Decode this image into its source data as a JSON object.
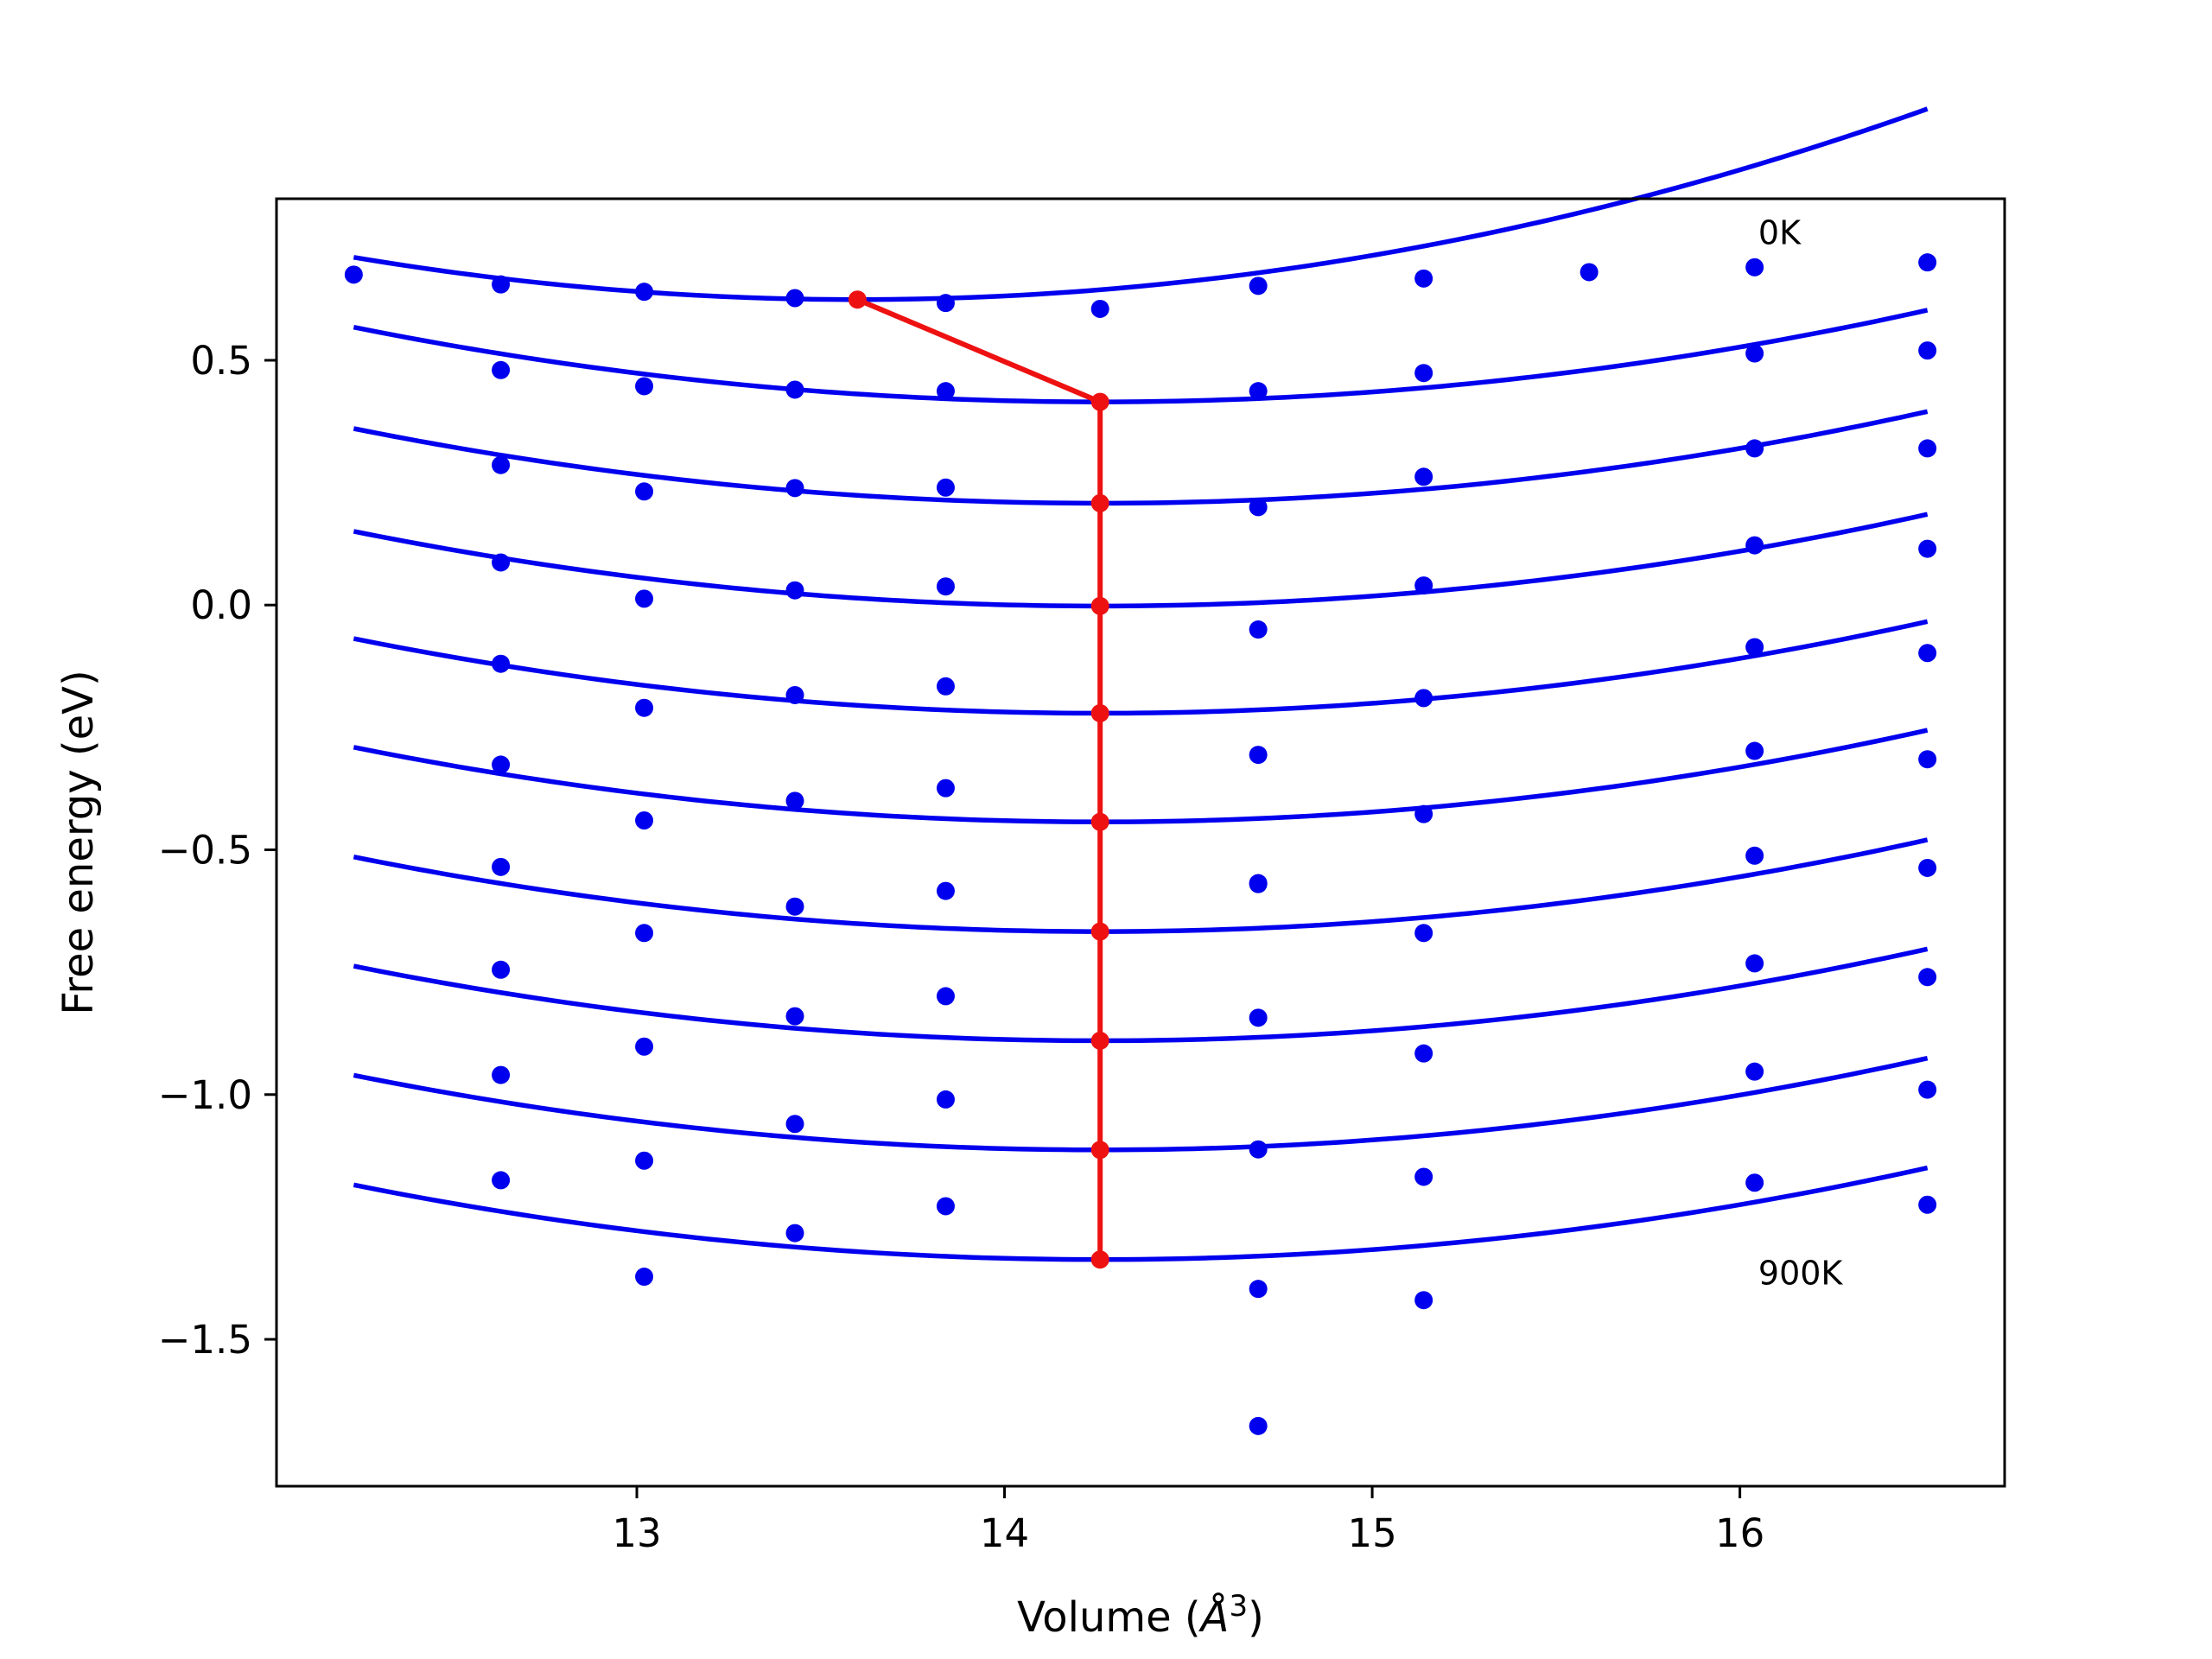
{
  "chart_data": {
    "type": "scatter",
    "xlabel_text": "Volume (",
    "xlabel_unit": "Å",
    "xlabel_sup": "3",
    "xlabel_close": ")",
    "ylabel": "Free energy (eV)",
    "xlim": [
      12.02,
      16.72
    ],
    "ylim": [
      -1.8,
      0.83
    ],
    "xticks": [
      13,
      14,
      15,
      16
    ],
    "xtick_labels": [
      "13",
      "14",
      "15",
      "16"
    ],
    "yticks": [
      0.5,
      0.0,
      -0.5,
      -1.0,
      -1.5
    ],
    "ytick_labels": [
      "0.5",
      "0.0",
      "−0.5",
      "−1.0",
      "−1.5"
    ],
    "grid": false,
    "annotations": [
      {
        "text": "0K",
        "x": 16.05,
        "y": 0.76
      },
      {
        "text": "900K",
        "x": 16.05,
        "y": -1.365
      }
    ],
    "volumes": [
      12.23,
      12.63,
      13.02,
      13.43,
      13.84,
      14.26,
      14.69,
      15.14,
      15.59,
      16.04,
      16.51
    ],
    "series": [
      {
        "label": "0K",
        "points": [
          [
            12.23,
            0.675
          ],
          [
            12.63,
            0.655
          ],
          [
            13.02,
            0.64
          ],
          [
            13.43,
            0.627
          ],
          [
            13.84,
            0.617
          ],
          [
            14.26,
            0.605
          ],
          [
            14.69,
            0.652
          ],
          [
            15.14,
            0.667
          ],
          [
            15.59,
            0.68
          ],
          [
            16.04,
            0.69
          ],
          [
            16.51,
            0.7
          ]
        ],
        "fit": {
          "a": 0.046,
          "vmin": 13.6,
          "emin": 0.624
        }
      },
      {
        "points": [
          [
            12.63,
            0.48
          ],
          [
            13.02,
            0.447
          ],
          [
            13.43,
            0.44
          ],
          [
            13.84,
            0.437
          ],
          [
            14.69,
            0.437
          ],
          [
            15.14,
            0.474
          ],
          [
            16.04,
            0.514
          ],
          [
            16.51,
            0.52
          ]
        ],
        "fit": {
          "a": 0.037,
          "vmin": 14.26,
          "emin": 0.415
        }
      },
      {
        "points": [
          [
            12.63,
            0.286
          ],
          [
            13.02,
            0.232
          ],
          [
            13.43,
            0.239
          ],
          [
            13.84,
            0.24
          ],
          [
            14.69,
            0.2
          ],
          [
            15.14,
            0.262
          ],
          [
            16.04,
            0.32
          ],
          [
            16.51,
            0.32
          ]
        ],
        "fit": {
          "a": 0.037,
          "vmin": 14.26,
          "emin": 0.208
        }
      },
      {
        "points": [
          [
            12.63,
            0.087
          ],
          [
            13.02,
            0.013
          ],
          [
            13.43,
            0.03
          ],
          [
            13.84,
            0.038
          ],
          [
            14.69,
            -0.05
          ],
          [
            15.14,
            0.04
          ],
          [
            16.04,
            0.122
          ],
          [
            16.51,
            0.115
          ]
        ],
        "fit": {
          "a": 0.037,
          "vmin": 14.26,
          "emin": -0.002
        }
      },
      {
        "points": [
          [
            12.63,
            -0.12
          ],
          [
            13.02,
            -0.21
          ],
          [
            13.43,
            -0.184
          ],
          [
            13.84,
            -0.166
          ],
          [
            14.69,
            -0.306
          ],
          [
            15.14,
            -0.19
          ],
          [
            16.04,
            -0.086
          ],
          [
            16.51,
            -0.098
          ]
        ],
        "fit": {
          "a": 0.037,
          "vmin": 14.26,
          "emin": -0.221
        }
      },
      {
        "points": [
          [
            12.63,
            -0.326
          ],
          [
            13.02,
            -0.44
          ],
          [
            13.43,
            -0.4
          ],
          [
            13.84,
            -0.374
          ],
          [
            14.69,
            -0.568
          ],
          [
            15.14,
            -0.427
          ],
          [
            16.04,
            -0.298
          ],
          [
            16.51,
            -0.315
          ]
        ],
        "fit": {
          "a": 0.037,
          "vmin": 14.26,
          "emin": -0.443
        }
      },
      {
        "points": [
          [
            12.63,
            -0.535
          ],
          [
            13.02,
            -0.67
          ],
          [
            13.43,
            -0.616
          ],
          [
            13.84,
            -0.584
          ],
          [
            14.69,
            -0.57
          ],
          [
            15.14,
            -0.67
          ],
          [
            16.04,
            -0.512
          ],
          [
            16.51,
            -0.537
          ]
        ],
        "fit": {
          "a": 0.037,
          "vmin": 14.26,
          "emin": -0.667
        }
      },
      {
        "points": [
          [
            12.63,
            -0.745
          ],
          [
            13.02,
            -0.902
          ],
          [
            13.43,
            -0.84
          ],
          [
            13.84,
            -0.799
          ],
          [
            14.69,
            -0.843
          ],
          [
            15.14,
            -0.916
          ],
          [
            16.04,
            -0.732
          ],
          [
            16.51,
            -0.76
          ]
        ],
        "fit": {
          "a": 0.037,
          "vmin": 14.26,
          "emin": -0.89
        }
      },
      {
        "points": [
          [
            12.63,
            -0.96
          ],
          [
            13.02,
            -1.135
          ],
          [
            13.43,
            -1.06
          ],
          [
            13.84,
            -1.01
          ],
          [
            14.69,
            -1.112
          ],
          [
            15.14,
            -1.168
          ],
          [
            16.04,
            -0.953
          ],
          [
            16.51,
            -0.99
          ]
        ],
        "fit": {
          "a": 0.037,
          "vmin": 14.26,
          "emin": -1.113
        }
      },
      {
        "label": "900K",
        "points": [
          [
            12.63,
            -1.175
          ],
          [
            13.02,
            -1.372
          ],
          [
            13.43,
            -1.283
          ],
          [
            13.84,
            -1.228
          ],
          [
            14.69,
            -1.397
          ],
          [
            15.14,
            -1.42
          ],
          [
            16.04,
            -1.18
          ],
          [
            16.51,
            -1.225
          ],
          [
            14.69,
            -1.677
          ]
        ],
        "fit": {
          "a": 0.037,
          "vmin": 14.26,
          "emin": -1.337
        }
      }
    ],
    "minima_path": [
      [
        13.6,
        0.624
      ],
      [
        14.26,
        0.415
      ],
      [
        14.26,
        0.208
      ],
      [
        14.26,
        -0.002
      ],
      [
        14.26,
        -0.221
      ],
      [
        14.26,
        -0.443
      ],
      [
        14.26,
        -0.667
      ],
      [
        14.26,
        -0.89
      ],
      [
        14.26,
        -1.113
      ],
      [
        14.26,
        -1.337
      ]
    ],
    "fit_range": [
      12.23,
      16.51
    ],
    "colors": {
      "series": "#0000ee",
      "path": "#ee1111",
      "axes": "#000000"
    }
  }
}
